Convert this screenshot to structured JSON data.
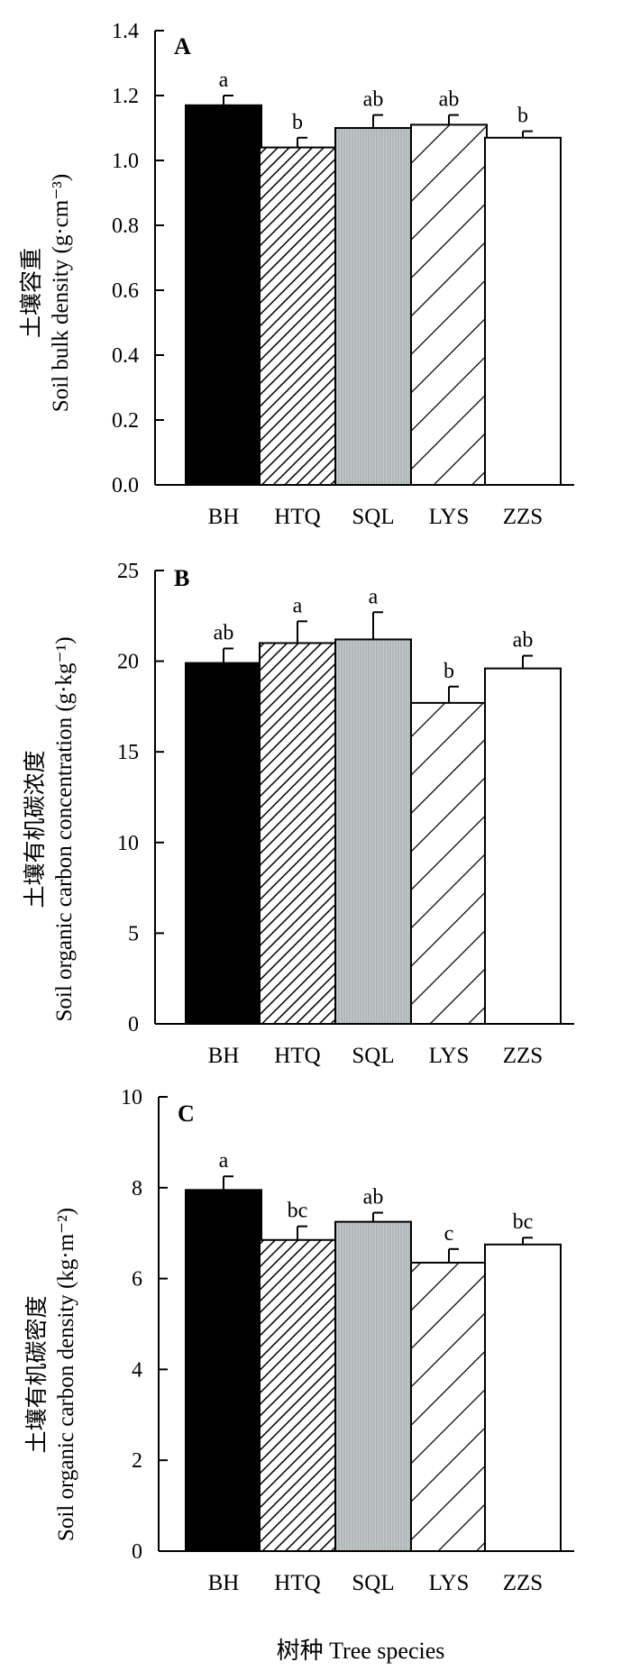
{
  "figure": {
    "xlabel": "树种 Tree species"
  },
  "chart_data": [
    {
      "type": "bar",
      "panel": "A",
      "ylabel_cn": "土壤容重",
      "ylabel_en": "Soil bulk density (g·cm⁻³)",
      "ylim": [
        0,
        1.4
      ],
      "yticks": [
        "0.0",
        "0.2",
        "0.4",
        "0.6",
        "0.8",
        "1.0",
        "1.2",
        "1.4"
      ],
      "categories": [
        "BH",
        "HTQ",
        "SQL",
        "LYS",
        "ZZS"
      ],
      "values": [
        1.17,
        1.04,
        1.1,
        1.11,
        1.07
      ],
      "errors": [
        0.03,
        0.03,
        0.04,
        0.03,
        0.02
      ],
      "letters": [
        "a",
        "b",
        "ab",
        "ab",
        "b"
      ]
    },
    {
      "type": "bar",
      "panel": "B",
      "ylabel_cn": "土壤有机碳浓度",
      "ylabel_en": "Soil organic carbon concentration (g·kg⁻¹)",
      "ylim": [
        0,
        25
      ],
      "yticks": [
        "0",
        "5",
        "10",
        "15",
        "20",
        "25"
      ],
      "categories": [
        "BH",
        "HTQ",
        "SQL",
        "LYS",
        "ZZS"
      ],
      "values": [
        19.9,
        21.0,
        21.2,
        17.7,
        19.6
      ],
      "errors": [
        0.8,
        1.2,
        1.5,
        0.9,
        0.7
      ],
      "letters": [
        "ab",
        "a",
        "a",
        "b",
        "ab"
      ]
    },
    {
      "type": "bar",
      "panel": "C",
      "ylabel_cn": "土壤有机碳密度",
      "ylabel_en": "Soil organic carbon density (kg·m⁻²)",
      "ylim": [
        0,
        10
      ],
      "yticks": [
        "0",
        "2",
        "4",
        "6",
        "8",
        "10"
      ],
      "categories": [
        "BH",
        "HTQ",
        "SQL",
        "LYS",
        "ZZS"
      ],
      "values": [
        7.95,
        6.85,
        7.25,
        6.35,
        6.75
      ],
      "errors": [
        0.3,
        0.3,
        0.2,
        0.3,
        0.15
      ],
      "letters": [
        "a",
        "bc",
        "ab",
        "c",
        "bc"
      ]
    }
  ],
  "styles": {
    "fills": [
      "solid-black",
      "diagonal-fine",
      "vertical-gray",
      "diagonal-wide",
      "white"
    ],
    "colors": {
      "black": "#000000",
      "gray": "#b8c0c0",
      "white": "#ffffff"
    }
  }
}
